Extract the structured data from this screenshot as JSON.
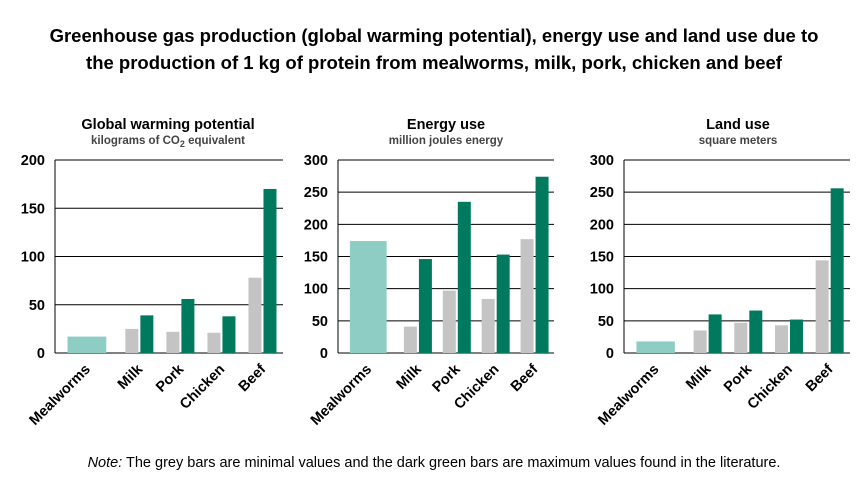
{
  "title": {
    "line1": "Greenhouse gas production (global warming potential), energy use and land use due to",
    "line2": "the production of 1 kg of protein from mealworms, milk, pork, chicken and beef"
  },
  "note": {
    "label": "Note:",
    "text": " The grey bars are minimal values and the dark green bars are maximum values found in the literature."
  },
  "colors": {
    "mealworms": "#8ecdc4",
    "min": "#c4c4c4",
    "max": "#007a5e"
  },
  "chart_data": [
    {
      "type": "bar",
      "title": "Global warming potential",
      "subtitle_pre": "kilograms of CO",
      "subtitle_sub": "2",
      "subtitle_post": " equivalent",
      "categories": [
        "Mealworms",
        "Milk",
        "Pork",
        "Chicken",
        "Beef"
      ],
      "mealworms": 17,
      "series": [
        {
          "values": [
            null,
            25,
            22,
            21,
            78
          ]
        },
        {
          "values": [
            null,
            39,
            56,
            38,
            170
          ]
        }
      ],
      "ylim": [
        0,
        200
      ],
      "yticks": [
        0,
        50,
        100,
        150,
        200
      ],
      "ytick_labels": [
        "0",
        "50",
        "100",
        "150",
        "200"
      ],
      "grid": true
    },
    {
      "type": "bar",
      "title": "Energy use",
      "subtitle_pre": "million joules energy",
      "subtitle_sub": "",
      "subtitle_post": "",
      "categories": [
        "Mealworms",
        "Milk",
        "Pork",
        "Chicken",
        "Beef"
      ],
      "mealworms": 174,
      "series": [
        {
          "values": [
            null,
            41,
            97,
            84,
            177
          ]
        },
        {
          "values": [
            null,
            146,
            235,
            153,
            274
          ]
        }
      ],
      "ylim": [
        0,
        300
      ],
      "yticks": [
        0,
        50,
        100,
        150,
        200,
        250,
        300
      ],
      "ytick_labels": [
        "0",
        "50",
        "100",
        "150",
        "200",
        "250",
        "300"
      ],
      "grid": true
    },
    {
      "type": "bar",
      "title": "Land use",
      "subtitle_pre": "square meters",
      "subtitle_sub": "",
      "subtitle_post": "",
      "categories": [
        "Mealworms",
        "Milk",
        "Pork",
        "Chicken",
        "Beef"
      ],
      "mealworms": 18,
      "series": [
        {
          "values": [
            null,
            35,
            47,
            43,
            144
          ]
        },
        {
          "values": [
            null,
            60,
            66,
            52,
            256
          ]
        }
      ],
      "ylim": [
        0,
        300
      ],
      "yticks": [
        0,
        50,
        100,
        150,
        200,
        250,
        300
      ],
      "ytick_labels": [
        "0",
        "50",
        "100",
        "150",
        "200",
        "250",
        "300"
      ],
      "grid": true
    }
  ]
}
